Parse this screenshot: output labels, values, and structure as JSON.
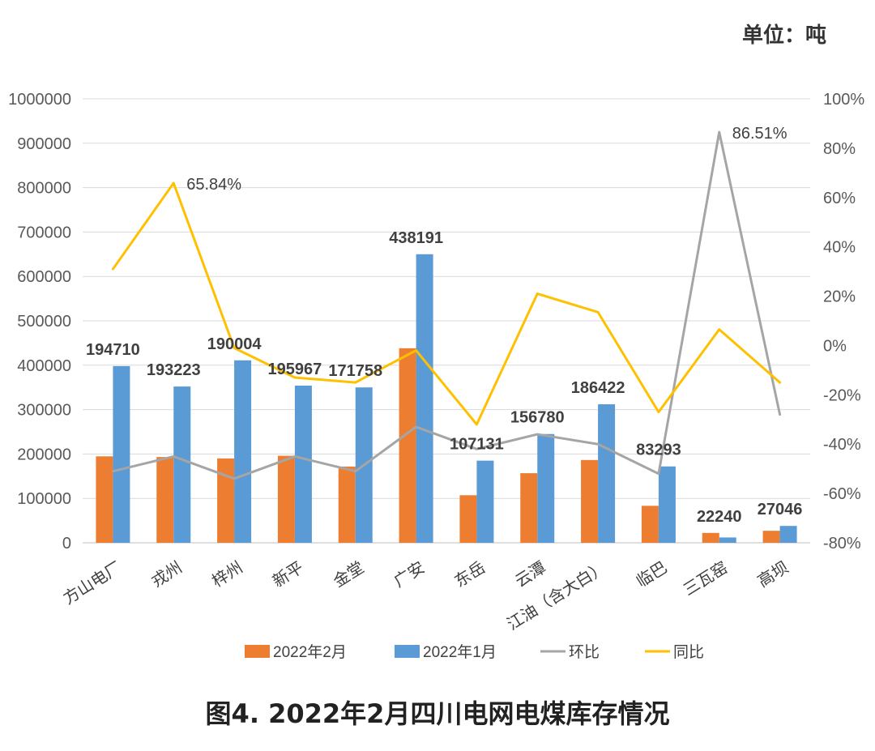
{
  "chart_data": {
    "type": "bar",
    "title": "图4. 2022年2月四川电网电煤库存情况",
    "unit": "单位：吨",
    "categories": [
      "方山电厂",
      "戎州",
      "梓州",
      "新平",
      "金堂",
      "广安",
      "东岳",
      "云潭",
      "江油（含大白）",
      "临巴",
      "三瓦窑",
      "高坝"
    ],
    "series": [
      {
        "name": "2022年2月",
        "type": "bar",
        "axis": "left",
        "color": "#ED7D31",
        "values": [
          194710,
          193223,
          190004,
          195967,
          171758,
          438191,
          107131,
          156780,
          186422,
          83293,
          22240,
          27046
        ]
      },
      {
        "name": "2022年1月",
        "type": "bar",
        "axis": "left",
        "color": "#5B9BD5",
        "values": [
          398000,
          352000,
          411000,
          354000,
          350000,
          650000,
          185000,
          245000,
          312000,
          172000,
          12000,
          38000
        ]
      },
      {
        "name": "环比",
        "type": "line",
        "axis": "right",
        "color": "#A5A5A5",
        "values": [
          -51,
          -45,
          -54,
          -45,
          -51,
          -33,
          -42,
          -36,
          -40,
          -52,
          86.51,
          -28
        ]
      },
      {
        "name": "同比",
        "type": "line",
        "axis": "right",
        "color": "#FFC000",
        "values": [
          31,
          65.84,
          -1,
          -13,
          -15,
          -2,
          -32,
          21,
          13.5,
          -27,
          6.5,
          -15
        ]
      }
    ],
    "data_labels": {
      "bars": [
        "194710",
        "193223",
        "190004",
        "195967",
        "171758",
        "438191",
        "107131",
        "156780",
        "186422",
        "83293",
        "22240",
        "27046"
      ],
      "line_annotations": [
        {
          "series": "同比",
          "category": "戎州",
          "text": "65.84%"
        },
        {
          "series": "环比",
          "category": "三瓦窑",
          "text": "86.51%"
        }
      ]
    },
    "y_left": {
      "min": 0,
      "max": 1000000,
      "step": 100000,
      "ticks": [
        "0",
        "100000",
        "200000",
        "300000",
        "400000",
        "500000",
        "600000",
        "700000",
        "800000",
        "900000",
        "1000000"
      ]
    },
    "y_right": {
      "min": -80,
      "max": 100,
      "step": 20,
      "ticks": [
        "-80%",
        "-60%",
        "-40%",
        "-20%",
        "0%",
        "20%",
        "40%",
        "60%",
        "80%",
        "100%"
      ]
    },
    "grid": true,
    "legend_position": "bottom"
  }
}
